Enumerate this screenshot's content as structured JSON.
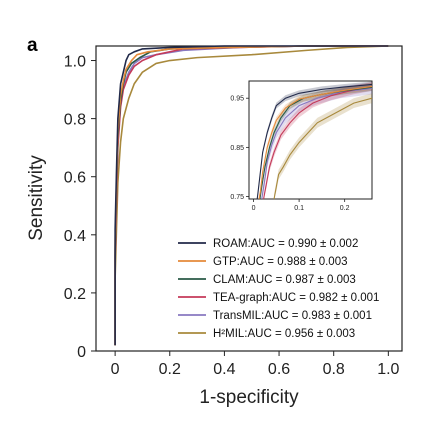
{
  "panel_label": "a",
  "chart_data": {
    "type": "line",
    "title": "",
    "xlabel": "1-specificity",
    "ylabel": "Sensitivity",
    "xlim": [
      -0.07,
      1.05
    ],
    "ylim": [
      0,
      1.05
    ],
    "x_ticks": [
      0,
      0.2,
      0.4,
      0.6,
      0.8,
      1.0
    ],
    "x_tick_labels": [
      "0",
      "0.2",
      "0.4",
      "0.6",
      "0.8",
      "1.0"
    ],
    "y_ticks": [
      0,
      0.2,
      0.4,
      0.6,
      0.8,
      1.0
    ],
    "y_tick_labels": [
      "0",
      "0.2",
      "0.4",
      "0.6",
      "0.8",
      "1.0"
    ],
    "grid": false,
    "legend_position": "lower-right",
    "series": [
      {
        "name": "ROAM",
        "label": "ROAM:AUC = 0.990 ± 0.002",
        "color": "#222a4a",
        "points": [
          [
            0,
            0.02
          ],
          [
            0,
            0.42
          ],
          [
            0.005,
            0.62
          ],
          [
            0.01,
            0.8
          ],
          [
            0.02,
            0.92
          ],
          [
            0.03,
            0.96
          ],
          [
            0.04,
            1.0
          ],
          [
            0.05,
            1.02
          ],
          [
            0.07,
            1.03
          ],
          [
            0.1,
            1.04
          ],
          [
            0.2,
            1.045
          ],
          [
            0.4,
            1.05
          ],
          [
            0.7,
            1.05
          ],
          [
            1.0,
            1.05
          ]
        ]
      },
      {
        "name": "GTP",
        "label": "GTP:AUC = 0.988 ± 0.003",
        "color": "#e58a3a",
        "points": [
          [
            0,
            0.02
          ],
          [
            0,
            0.38
          ],
          [
            0.005,
            0.58
          ],
          [
            0.01,
            0.76
          ],
          [
            0.02,
            0.88
          ],
          [
            0.03,
            0.93
          ],
          [
            0.04,
            0.97
          ],
          [
            0.06,
            1.0
          ],
          [
            0.08,
            1.02
          ],
          [
            0.12,
            1.03
          ],
          [
            0.2,
            1.04
          ],
          [
            0.4,
            1.045
          ],
          [
            0.7,
            1.05
          ],
          [
            1.0,
            1.05
          ]
        ]
      },
      {
        "name": "CLAM",
        "label": "CLAM:AUC = 0.987 ± 0.003",
        "color": "#2a5a46",
        "points": [
          [
            0,
            0.02
          ],
          [
            0,
            0.35
          ],
          [
            0.005,
            0.56
          ],
          [
            0.01,
            0.74
          ],
          [
            0.02,
            0.86
          ],
          [
            0.03,
            0.92
          ],
          [
            0.04,
            0.96
          ],
          [
            0.06,
            0.99
          ],
          [
            0.09,
            1.01
          ],
          [
            0.13,
            1.03
          ],
          [
            0.2,
            1.04
          ],
          [
            0.4,
            1.045
          ],
          [
            0.7,
            1.05
          ],
          [
            1.0,
            1.05
          ]
        ]
      },
      {
        "name": "TEA-graph",
        "label": "TEA-graph:AUC = 0.982 ± 0.001",
        "color": "#c43a5a",
        "points": [
          [
            0,
            0.02
          ],
          [
            0,
            0.32
          ],
          [
            0.005,
            0.52
          ],
          [
            0.01,
            0.7
          ],
          [
            0.02,
            0.84
          ],
          [
            0.03,
            0.9
          ],
          [
            0.05,
            0.95
          ],
          [
            0.07,
            0.98
          ],
          [
            0.1,
            1.0
          ],
          [
            0.15,
            1.02
          ],
          [
            0.25,
            1.04
          ],
          [
            0.45,
            1.045
          ],
          [
            0.7,
            1.05
          ],
          [
            1.0,
            1.05
          ]
        ]
      },
      {
        "name": "TransMIL",
        "label": "TransMIL:AUC = 0.983 ± 0.001",
        "color": "#8878c0",
        "points": [
          [
            0,
            0.02
          ],
          [
            0,
            0.33
          ],
          [
            0.005,
            0.54
          ],
          [
            0.01,
            0.72
          ],
          [
            0.02,
            0.85
          ],
          [
            0.03,
            0.91
          ],
          [
            0.05,
            0.96
          ],
          [
            0.07,
            0.99
          ],
          [
            0.1,
            1.01
          ],
          [
            0.15,
            1.02
          ],
          [
            0.25,
            1.035
          ],
          [
            0.45,
            1.045
          ],
          [
            0.7,
            1.05
          ],
          [
            1.0,
            1.05
          ]
        ]
      },
      {
        "name": "H2MIL",
        "label": "H²MIL:AUC = 0.956 ± 0.003",
        "color": "#a8893c",
        "points": [
          [
            0,
            0.02
          ],
          [
            0,
            0.25
          ],
          [
            0.005,
            0.42
          ],
          [
            0.01,
            0.58
          ],
          [
            0.02,
            0.72
          ],
          [
            0.03,
            0.8
          ],
          [
            0.05,
            0.87
          ],
          [
            0.07,
            0.92
          ],
          [
            0.1,
            0.96
          ],
          [
            0.15,
            0.99
          ],
          [
            0.2,
            1.0
          ],
          [
            0.3,
            1.01
          ],
          [
            0.5,
            1.02
          ],
          [
            0.7,
            1.035
          ],
          [
            0.85,
            1.045
          ],
          [
            1.0,
            1.05
          ]
        ]
      }
    ],
    "inset": {
      "xlim": [
        -0.01,
        0.26
      ],
      "ylim": [
        0.745,
        0.985
      ],
      "x_ticks": [
        0,
        0.1,
        0.2
      ],
      "x_tick_labels": [
        "0",
        "0.1",
        "0.2"
      ],
      "y_ticks": [
        0.75,
        0.85,
        0.95
      ],
      "y_tick_labels": [
        "0.75",
        "0.85",
        "0.95"
      ],
      "series": [
        {
          "name": "ROAM",
          "points": [
            [
              0.008,
              0.745
            ],
            [
              0.01,
              0.76
            ],
            [
              0.015,
              0.8
            ],
            [
              0.02,
              0.84
            ],
            [
              0.03,
              0.88
            ],
            [
              0.04,
              0.91
            ],
            [
              0.05,
              0.935
            ],
            [
              0.07,
              0.95
            ],
            [
              0.1,
              0.96
            ],
            [
              0.15,
              0.968
            ],
            [
              0.2,
              0.973
            ],
            [
              0.26,
              0.978
            ]
          ],
          "band": 0.006
        },
        {
          "name": "GTP",
          "points": [
            [
              0.012,
              0.745
            ],
            [
              0.015,
              0.76
            ],
            [
              0.02,
              0.8
            ],
            [
              0.03,
              0.85
            ],
            [
              0.04,
              0.88
            ],
            [
              0.05,
              0.905
            ],
            [
              0.07,
              0.93
            ],
            [
              0.1,
              0.948
            ],
            [
              0.15,
              0.958
            ],
            [
              0.2,
              0.966
            ],
            [
              0.26,
              0.974
            ]
          ],
          "band": 0.007
        },
        {
          "name": "CLAM",
          "points": [
            [
              0.014,
              0.745
            ],
            [
              0.018,
              0.77
            ],
            [
              0.025,
              0.81
            ],
            [
              0.035,
              0.85
            ],
            [
              0.045,
              0.88
            ],
            [
              0.06,
              0.91
            ],
            [
              0.08,
              0.935
            ],
            [
              0.11,
              0.95
            ],
            [
              0.15,
              0.958
            ],
            [
              0.2,
              0.965
            ],
            [
              0.26,
              0.972
            ]
          ],
          "band": 0.007
        },
        {
          "name": "TEA-graph",
          "points": [
            [
              0.022,
              0.745
            ],
            [
              0.028,
              0.775
            ],
            [
              0.035,
              0.81
            ],
            [
              0.045,
              0.84
            ],
            [
              0.06,
              0.875
            ],
            [
              0.08,
              0.9
            ],
            [
              0.1,
              0.92
            ],
            [
              0.13,
              0.94
            ],
            [
              0.17,
              0.955
            ],
            [
              0.22,
              0.967
            ],
            [
              0.26,
              0.974
            ]
          ],
          "band": 0.009
        },
        {
          "name": "TransMIL",
          "points": [
            [
              0.018,
              0.745
            ],
            [
              0.024,
              0.78
            ],
            [
              0.03,
              0.82
            ],
            [
              0.04,
              0.855
            ],
            [
              0.05,
              0.88
            ],
            [
              0.07,
              0.91
            ],
            [
              0.1,
              0.935
            ],
            [
              0.14,
              0.95
            ],
            [
              0.19,
              0.962
            ],
            [
              0.26,
              0.97
            ]
          ],
          "band": 0.012
        },
        {
          "name": "H2MIL",
          "points": [
            [
              0.045,
              0.745
            ],
            [
              0.05,
              0.77
            ],
            [
              0.055,
              0.795
            ],
            [
              0.065,
              0.81
            ],
            [
              0.08,
              0.835
            ],
            [
              0.1,
              0.86
            ],
            [
              0.12,
              0.88
            ],
            [
              0.14,
              0.9
            ],
            [
              0.16,
              0.91
            ],
            [
              0.19,
              0.925
            ],
            [
              0.22,
              0.94
            ],
            [
              0.26,
              0.95
            ]
          ],
          "band": 0.01
        }
      ]
    }
  }
}
